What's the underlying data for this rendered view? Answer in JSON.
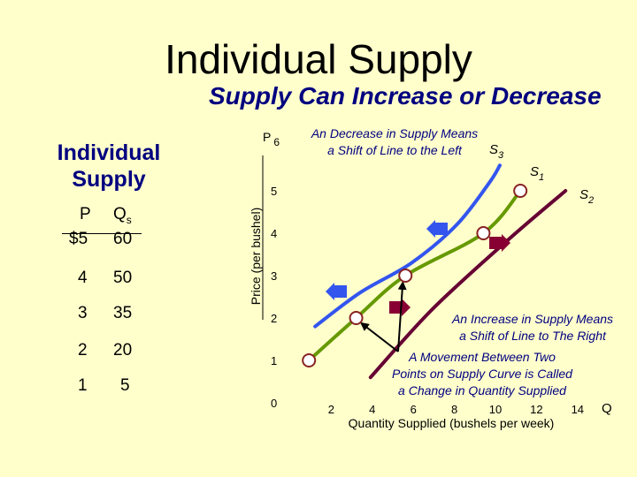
{
  "slide": {
    "title": "Individual Supply",
    "subtitle": "Supply Can Increase or Decrease"
  },
  "schedule": {
    "heading": "Individual Supply",
    "headers": {
      "price": "P",
      "quantity_main": "Q",
      "quantity_sub": "s"
    },
    "rows": [
      {
        "price": "$5",
        "quantity": "60"
      },
      {
        "price": "4",
        "quantity": "50"
      },
      {
        "price": "3",
        "quantity": "35"
      },
      {
        "price": "2",
        "quantity": "20"
      },
      {
        "price": "1",
        "quantity": "5"
      }
    ]
  },
  "chart_data": {
    "type": "line",
    "y_label_main": "P",
    "y_label_sub": "6",
    "x_end_label": "Q",
    "xlabel": "Quantity Supplied (bushels per week)",
    "ylabel": "Price (per bushel)",
    "xlim": [
      0,
      15
    ],
    "ylim": [
      0,
      6
    ],
    "x_ticks": [
      2,
      4,
      6,
      8,
      10,
      12,
      14
    ],
    "y_ticks": [
      0,
      1,
      2,
      3,
      4,
      5
    ],
    "series": [
      {
        "name": "S",
        "name_sub": "1",
        "color": "#669900",
        "points": [
          [
            1,
            1
          ],
          [
            3.3,
            2
          ],
          [
            5.7,
            3
          ],
          [
            9.5,
            4
          ],
          [
            11.3,
            5
          ]
        ],
        "markers": true
      },
      {
        "name": "S",
        "name_sub": "3",
        "color": "#3355ee",
        "points": [
          [
            1.3,
            1.8
          ],
          [
            3.5,
            2.6
          ],
          [
            6,
            3.3
          ],
          [
            8.2,
            4.2
          ],
          [
            9.8,
            5.2
          ],
          [
            10.3,
            5.6
          ]
        ],
        "markers": false
      },
      {
        "name": "S",
        "name_sub": "2",
        "color": "#660033",
        "points": [
          [
            4,
            0.6
          ],
          [
            7,
            2.2
          ],
          [
            10.6,
            3.8
          ],
          [
            13.5,
            5
          ]
        ],
        "markers": false
      }
    ],
    "annotations": {
      "decrease": [
        "An Decrease in Supply Means",
        "a Shift of Line to the Left"
      ],
      "increase": [
        "An Increase in Supply Means",
        "a Shift of Line to The Right"
      ],
      "movement": [
        "A Movement Between Two",
        "Points on Supply Curve is Called",
        "a Change in Quantity Supplied"
      ]
    },
    "colors": {
      "left_arrows": "#3355ee",
      "right_arrows": "#880033",
      "marker_stroke": "#882222"
    }
  }
}
